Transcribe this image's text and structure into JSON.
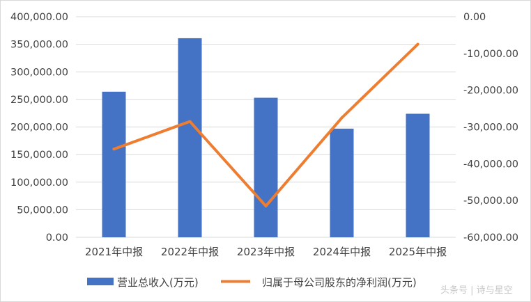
{
  "chart_data": {
    "type": "bar+line",
    "categories": [
      "2021年中报",
      "2022年中报",
      "2023年中报",
      "2024年中报",
      "2025年中报"
    ],
    "series": [
      {
        "name": "营业总收入(万元)",
        "type": "bar",
        "axis": "left",
        "values": [
          264000,
          361000,
          253000,
          197000,
          224000
        ],
        "color": "#4472c4"
      },
      {
        "name": "归属于母公司股东的净利润(万元)",
        "type": "line",
        "axis": "right",
        "values": [
          -36000,
          -28500,
          -51500,
          -27500,
          -7500
        ],
        "color": "#ed7d31"
      }
    ],
    "y_left": {
      "range": [
        0,
        400000
      ],
      "ticks": [
        0,
        50000,
        100000,
        150000,
        200000,
        250000,
        300000,
        350000,
        400000
      ],
      "tick_labels": [
        "0.00",
        "50,000.00",
        "100,000.00",
        "150,000.00",
        "200,000.00",
        "250,000.00",
        "300,000.00",
        "350,000.00",
        "400,000.00"
      ]
    },
    "y_right": {
      "range": [
        -60000,
        0
      ],
      "ticks": [
        -60000,
        -50000,
        -40000,
        -30000,
        -20000,
        -10000,
        0
      ],
      "tick_labels": [
        "-60,000.00",
        "-50,000.00",
        "-40,000.00",
        "-30,000.00",
        "-20,000.00",
        "-10,000.00",
        "0.00"
      ]
    },
    "grid": true,
    "legend_position": "bottom"
  },
  "watermark": "头条号 | 诗与星空"
}
